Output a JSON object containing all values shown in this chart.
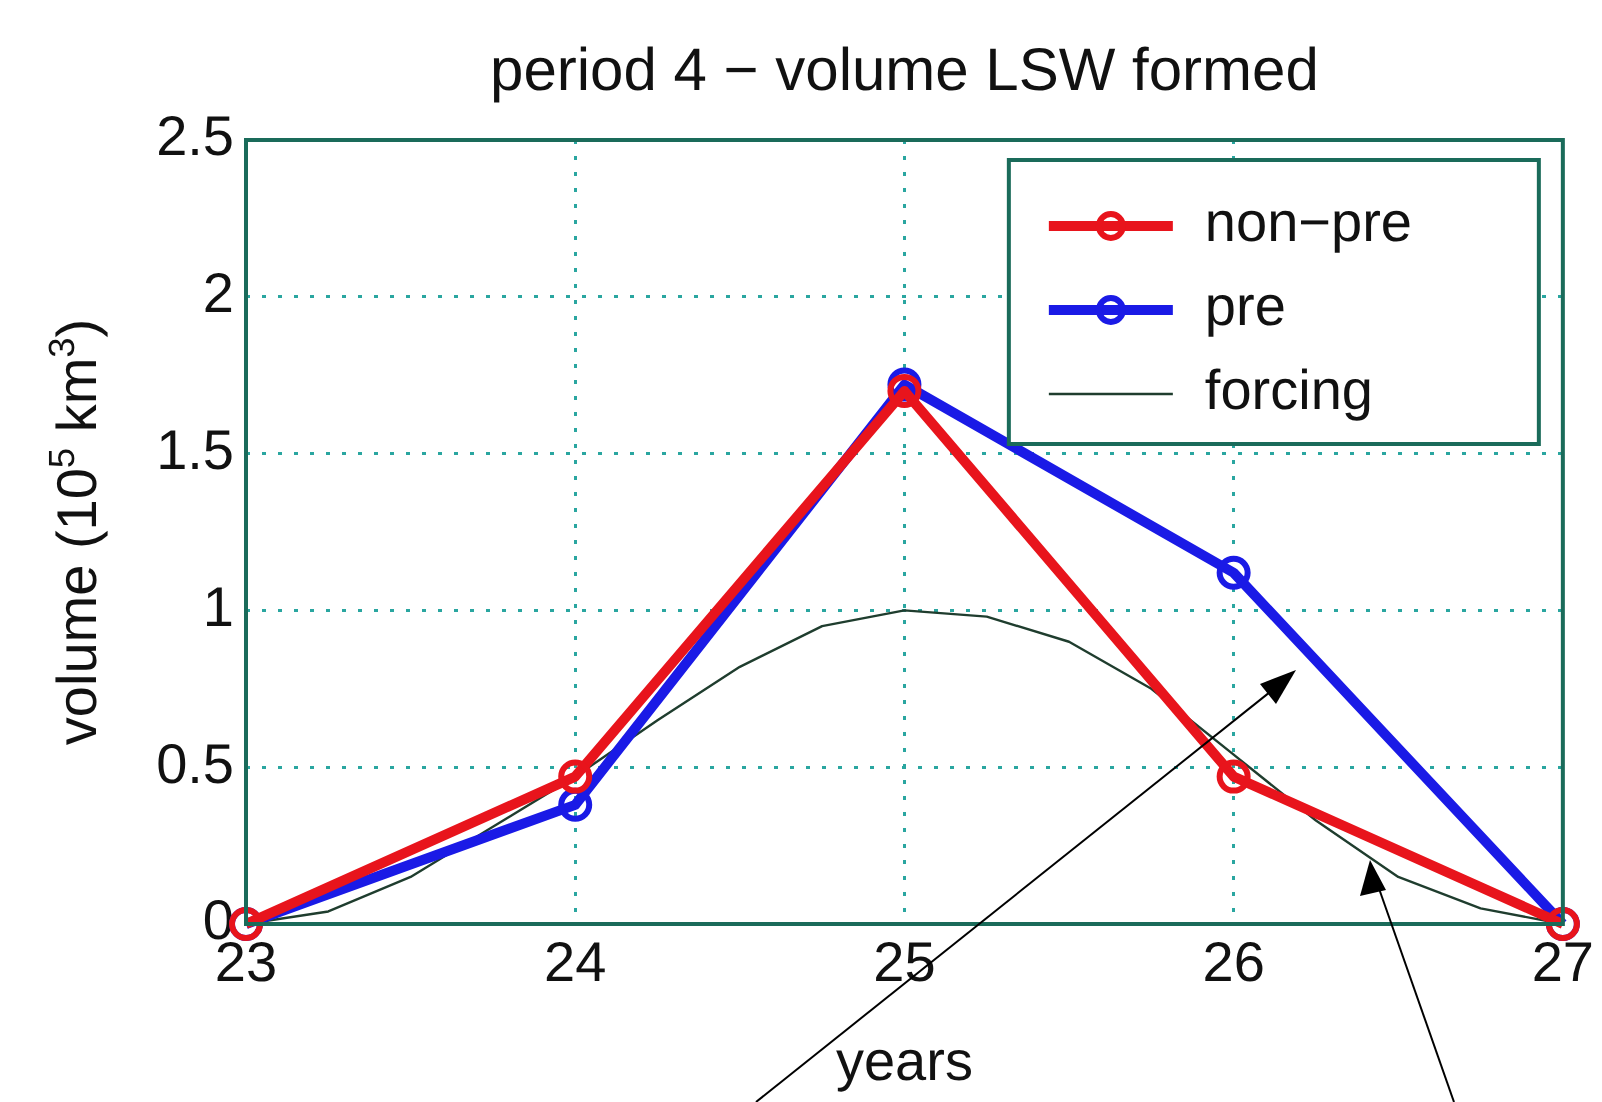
{
  "chart_data": {
    "type": "line",
    "title": "period 4 − volume LSW formed",
    "xlabel": "years",
    "ylabel": "volume (10$^{5}$ km$^{3}$)",
    "xlim": [
      23,
      27
    ],
    "xticks": [
      23,
      24,
      25,
      26,
      27
    ],
    "ylim": [
      0,
      2.5
    ],
    "yticks": [
      0,
      0.5,
      1,
      1.5,
      2,
      2.5
    ],
    "grid": true,
    "legend": "top right",
    "series": [
      {
        "name": "non−pre",
        "color": "#e8141c",
        "marker": "circle",
        "x": [
          23,
          24,
          25,
          26,
          27
        ],
        "values": [
          0,
          0.47,
          1.7,
          0.47,
          0
        ]
      },
      {
        "name": "pre",
        "color": "#1a1ae6",
        "marker": "circle",
        "x": [
          23,
          24,
          25,
          26,
          27
        ],
        "values": [
          0,
          0.38,
          1.72,
          1.12,
          0
        ]
      },
      {
        "name": "forcing",
        "color": "#1f3d2e",
        "marker": "none",
        "x": [
          23,
          23.25,
          23.5,
          23.75,
          24,
          24.25,
          24.5,
          24.75,
          25,
          25.25,
          25.5,
          25.75,
          26,
          26.25,
          26.5,
          26.75,
          27
        ],
        "values": [
          0,
          0.04,
          0.15,
          0.31,
          0.47,
          0.65,
          0.82,
          0.95,
          1,
          0.98,
          0.9,
          0.75,
          0.54,
          0.33,
          0.15,
          0.05,
          0
        ]
      }
    ]
  }
}
